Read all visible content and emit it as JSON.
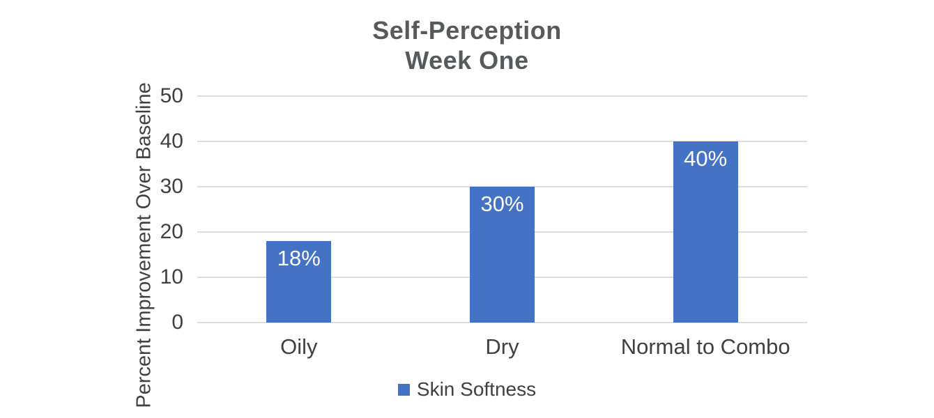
{
  "chart_data": {
    "type": "bar",
    "title_line1": "Self-Perception",
    "title_line2": "Week One",
    "ylabel": "Percent Improvement Over Baseline",
    "xlabel": "",
    "categories": [
      "Oily",
      "Dry",
      "Normal to Combo"
    ],
    "series": [
      {
        "name": "Skin Softness",
        "values": [
          18,
          30,
          40
        ]
      }
    ],
    "bar_labels": [
      "18%",
      "30%",
      "40%"
    ],
    "ylim": [
      0,
      50
    ],
    "yticks": [
      0,
      10,
      20,
      30,
      40,
      50
    ],
    "grid": "horizontal-only",
    "legend_position": "bottom-center",
    "colors": {
      "bar": "#4472C4",
      "bar_label_text": "#FFFFFF",
      "title_text": "#58595B",
      "axis_text": "#404040",
      "gridline": "#DDDDDD",
      "background": "#FFFFFF"
    }
  }
}
